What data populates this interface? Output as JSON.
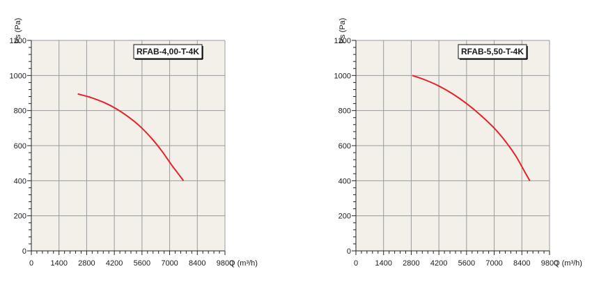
{
  "colors": {
    "plot_background": "#f2f0e8",
    "grid": "#9a9a9a",
    "axis": "#222222",
    "curve": "#e8202a"
  },
  "chart_data": [
    {
      "type": "line",
      "model_label": "RFAB-4,00-T-4K",
      "xlabel": "Q (m³/h)",
      "ylabel": "Ps (Pa)",
      "xlim": [
        0,
        9800
      ],
      "ylim": [
        0,
        1200
      ],
      "x_ticks": [
        0,
        1400,
        2800,
        4200,
        5600,
        7000,
        8400,
        9800
      ],
      "x_tick_labels": [
        "0",
        "1400",
        "2800",
        "4200",
        "5600",
        "7000",
        "8400",
        "9800"
      ],
      "y_ticks": [
        0,
        200,
        400,
        600,
        800,
        1000,
        1200
      ],
      "y_tick_labels": [
        "0",
        "200",
        "400",
        "600",
        "800",
        "1000",
        "1200"
      ],
      "grid": true,
      "series": [
        {
          "x": [
            2350,
            3000,
            3700,
            4300,
            4900,
            5500,
            6100,
            6600,
            7100,
            7500,
            7700
          ],
          "y": [
            895,
            875,
            845,
            810,
            765,
            710,
            640,
            570,
            490,
            430,
            400
          ]
        }
      ]
    },
    {
      "type": "line",
      "model_label": "RFAB-5,50-T-4K",
      "xlabel": "Q (m³/h)",
      "ylabel": "Ps (Pa)",
      "xlim": [
        0,
        9800
      ],
      "ylim": [
        0,
        1200
      ],
      "x_ticks": [
        0,
        1400,
        2800,
        4200,
        5600,
        7000,
        8400,
        9800
      ],
      "x_tick_labels": [
        "0",
        "1400",
        "2800",
        "4200",
        "5600",
        "7000",
        "8400",
        "9800"
      ],
      "y_ticks": [
        0,
        200,
        400,
        600,
        800,
        1000,
        1200
      ],
      "y_tick_labels": [
        "0",
        "200",
        "400",
        "600",
        "800",
        "1000",
        "1200"
      ],
      "grid": true,
      "series": [
        {
          "x": [
            2850,
            3500,
            4200,
            4900,
            5600,
            6300,
            7000,
            7600,
            8100,
            8500,
            8800
          ],
          "y": [
            1000,
            975,
            940,
            895,
            840,
            775,
            700,
            620,
            540,
            460,
            400
          ]
        }
      ]
    }
  ]
}
